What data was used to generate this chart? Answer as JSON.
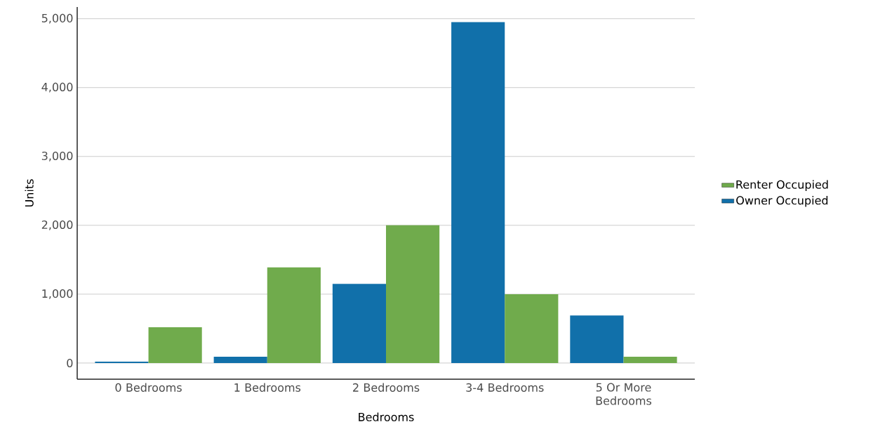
{
  "chart_data": {
    "type": "bar",
    "xlabel": "Bedrooms",
    "ylabel": "Units",
    "categories": [
      "0 Bedrooms",
      "1 Bedrooms",
      "2 Bedrooms",
      "3-4 Bedrooms",
      "5 Or More Bedrooms"
    ],
    "series": [
      {
        "name": "Owner Occupied",
        "color": "#1170aa",
        "values": [
          20,
          90,
          1150,
          4950,
          690
        ]
      },
      {
        "name": "Renter Occupied",
        "color": "#70ab4c",
        "values": [
          520,
          1390,
          2000,
          1000,
          90
        ]
      }
    ],
    "ylim": [
      -235,
      5170
    ],
    "yticks": [
      {
        "value": 0,
        "label": "0"
      },
      {
        "value": 1000,
        "label": "1,000"
      },
      {
        "value": 2000,
        "label": "2,000"
      },
      {
        "value": 3000,
        "label": "3,000"
      },
      {
        "value": 4000,
        "label": "4,000"
      },
      {
        "value": 5000,
        "label": "5,000"
      }
    ],
    "grid": "y",
    "legend": "right"
  }
}
